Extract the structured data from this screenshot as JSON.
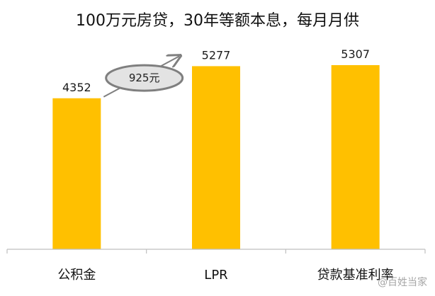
{
  "chart_data": {
    "type": "bar",
    "title": "100万元房贷，30年等额本息，每月月供",
    "categories": [
      "公积金",
      "LPR",
      "贷款基准利率"
    ],
    "values": [
      4352,
      5277,
      5307
    ],
    "value_labels": [
      "4352",
      "5277",
      "5307"
    ],
    "ylim": [
      0,
      6000
    ],
    "xlabel": "",
    "ylabel": "",
    "grid": false,
    "legend": "none",
    "bar_color": "#FFC000",
    "annotations": [
      {
        "text": "925元",
        "from_category": "公积金",
        "to_category": "LPR",
        "style": "ellipse-with-arrow",
        "stroke_color": "#7F7F7F",
        "fill_color": "#E3E3E3"
      }
    ]
  },
  "watermark": {
    "text": "@百姓当家"
  },
  "colors": {
    "axis": "#BFBFBF",
    "text": "#111111"
  }
}
